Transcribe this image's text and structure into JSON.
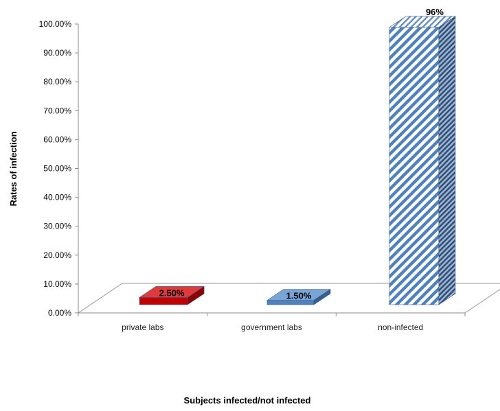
{
  "chart_data": {
    "type": "bar",
    "categories": [
      "private labs",
      "government labs",
      "non-infected"
    ],
    "values": [
      2.5,
      1.5,
      96
    ],
    "data_labels": [
      "2.50%",
      "1.50%",
      "96%"
    ],
    "ylabel": "Rates of infection",
    "xlabel": "Subjects infected/not infected",
    "ylim": [
      0,
      100
    ],
    "y_ticks": [
      "0.00%",
      "10.00%",
      "20.00%",
      "30.00%",
      "40.00%",
      "50.00%",
      "60.00%",
      "70.00%",
      "80.00%",
      "90.00%",
      "100.00%"
    ],
    "grid": false,
    "legend": "none",
    "colors": {
      "private labs": "#c00000",
      "government labs": "#4f81bd",
      "non-infected": "#4f81bd"
    },
    "style": "3d-column"
  }
}
